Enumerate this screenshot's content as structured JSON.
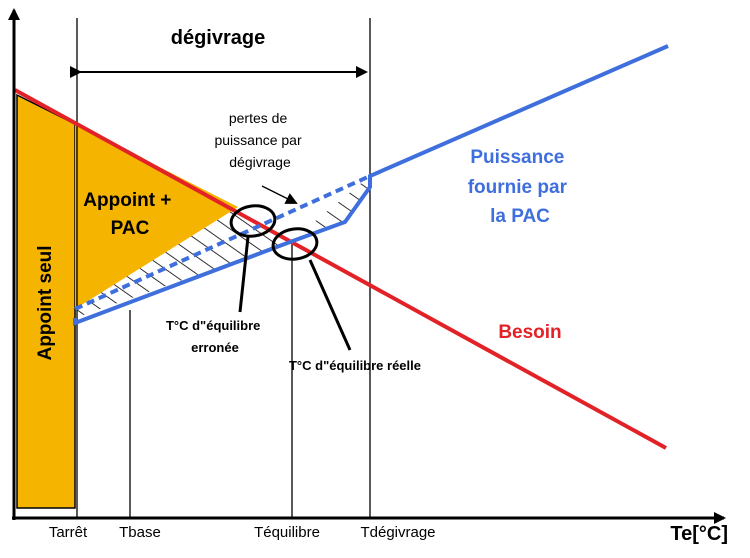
{
  "diagram": {
    "header_label": "dégivrage",
    "losses_label": [
      "pertes de",
      "puissance par",
      "dégivrage"
    ],
    "zone_supplement_only": "Appoint seul",
    "zone_supplement_and_hp": [
      "Appoint +",
      "PAC"
    ],
    "curve_hp_label": [
      "Puissance",
      "fournie par",
      "la PAC"
    ],
    "curve_need_label": "Besoin",
    "balance_wrong_label": [
      "T°C d\"équilibre",
      "erronée"
    ],
    "balance_real_label": "T°C d\"équilibre réelle",
    "x_ticks": [
      "Tarrêt",
      "Tbase",
      "Téquilibre",
      "Tdégivrage"
    ],
    "x_axis_label": "Te[°C]"
  },
  "colors": {
    "need": "#e32227",
    "heat_pump": "#3f6fdc",
    "fill_supplement": "#f5b400",
    "axis": "#000000"
  }
}
